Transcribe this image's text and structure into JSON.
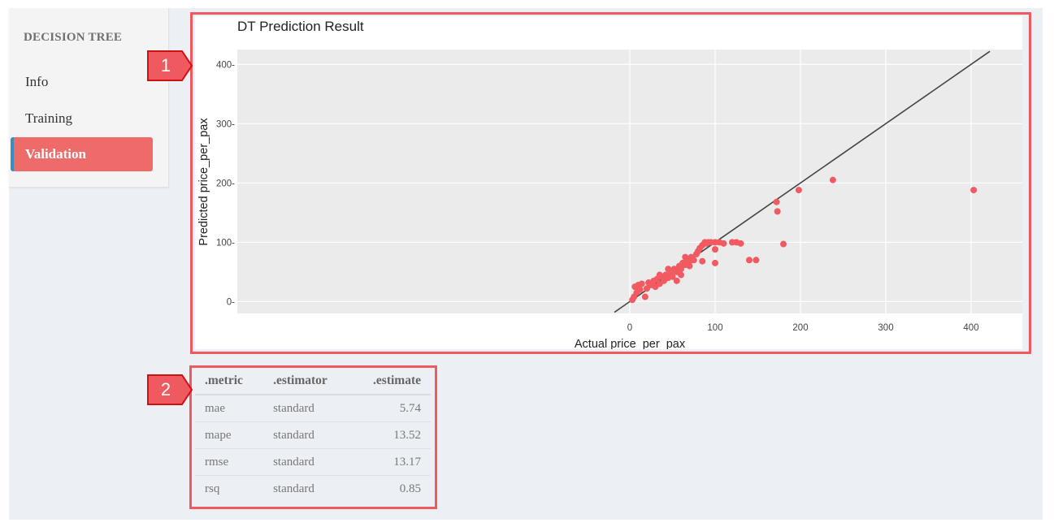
{
  "sidebar": {
    "title": "DECISION TREE",
    "items": [
      {
        "label": "Info",
        "active": false
      },
      {
        "label": "Training",
        "active": false
      },
      {
        "label": "Validation",
        "active": true
      }
    ]
  },
  "colors": {
    "accent": "#ee6b69",
    "callout": "#ee5a5f",
    "point": "#f05a60",
    "active_border": "#3c8dbc",
    "plot_panel": "#ebebeb"
  },
  "callouts": {
    "one": "1",
    "two": "2"
  },
  "chart_data": {
    "type": "scatter",
    "title": "DT Prediction Result",
    "xlabel": "Actual price_per_pax",
    "ylabel": "Predicted price_per_pax",
    "xlim": [
      -460,
      460
    ],
    "ylim": [
      -20,
      425
    ],
    "x_ticks": [
      0,
      100,
      200,
      300,
      400
    ],
    "y_ticks": [
      0,
      100,
      200,
      300,
      400
    ],
    "grid": true,
    "reference_line": {
      "from": [
        -18,
        -18
      ],
      "to": [
        422,
        422
      ]
    },
    "points": [
      [
        3,
        3
      ],
      [
        5,
        8
      ],
      [
        8,
        15
      ],
      [
        6,
        25
      ],
      [
        10,
        28
      ],
      [
        12,
        20
      ],
      [
        14,
        30
      ],
      [
        18,
        8
      ],
      [
        20,
        22
      ],
      [
        22,
        32
      ],
      [
        25,
        28
      ],
      [
        28,
        35
      ],
      [
        30,
        25
      ],
      [
        32,
        38
      ],
      [
        35,
        30
      ],
      [
        38,
        42
      ],
      [
        40,
        35
      ],
      [
        42,
        45
      ],
      [
        45,
        40
      ],
      [
        48,
        48
      ],
      [
        50,
        42
      ],
      [
        52,
        55
      ],
      [
        55,
        50
      ],
      [
        58,
        60
      ],
      [
        60,
        55
      ],
      [
        62,
        65
      ],
      [
        65,
        62
      ],
      [
        68,
        70
      ],
      [
        70,
        68
      ],
      [
        72,
        75
      ],
      [
        75,
        70
      ],
      [
        78,
        80
      ],
      [
        80,
        85
      ],
      [
        82,
        90
      ],
      [
        85,
        95
      ],
      [
        88,
        100
      ],
      [
        90,
        98
      ],
      [
        92,
        100
      ],
      [
        95,
        100
      ],
      [
        100,
        100
      ],
      [
        100,
        88
      ],
      [
        105,
        100
      ],
      [
        110,
        98
      ],
      [
        120,
        100
      ],
      [
        125,
        100
      ],
      [
        130,
        98
      ],
      [
        140,
        70
      ],
      [
        148,
        70
      ],
      [
        60,
        45
      ],
      [
        70,
        60
      ],
      [
        85,
        68
      ],
      [
        100,
        65
      ],
      [
        55,
        35
      ],
      [
        45,
        55
      ],
      [
        35,
        45
      ],
      [
        65,
        75
      ],
      [
        172,
        168
      ],
      [
        173,
        152
      ],
      [
        180,
        97
      ],
      [
        198,
        188
      ],
      [
        238,
        205
      ],
      [
        403,
        188
      ]
    ]
  },
  "metrics_table": {
    "headers": [
      ".metric",
      ".estimator",
      ".estimate"
    ],
    "rows": [
      {
        "metric": "mae",
        "estimator": "standard",
        "estimate": "5.74"
      },
      {
        "metric": "mape",
        "estimator": "standard",
        "estimate": "13.52"
      },
      {
        "metric": "rmse",
        "estimator": "standard",
        "estimate": "13.17"
      },
      {
        "metric": "rsq",
        "estimator": "standard",
        "estimate": "0.85"
      }
    ]
  }
}
